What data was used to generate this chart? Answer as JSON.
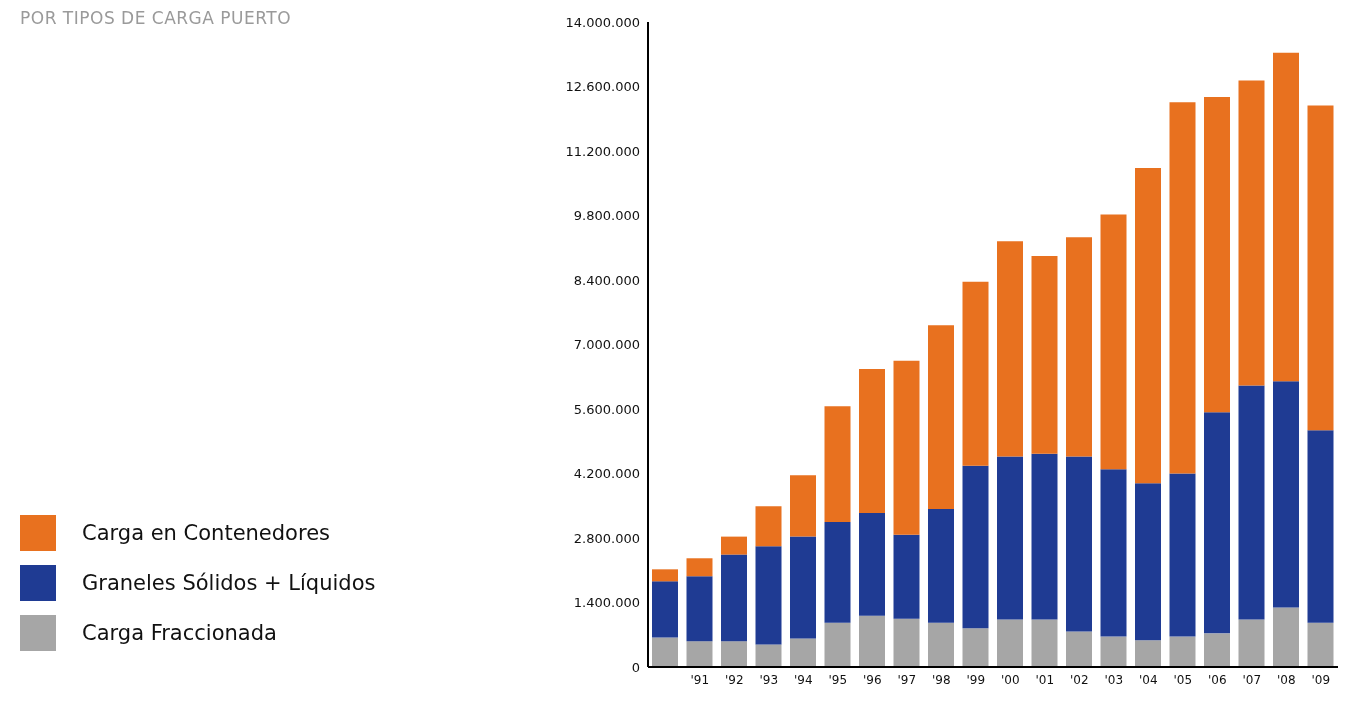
{
  "chart_data": {
    "type": "bar",
    "title": "POR TIPOS DE CARGA PUERTO",
    "stacked": true,
    "legend": "bottom left",
    "grid": false,
    "categories": [
      null,
      "'91",
      "'92",
      "'93",
      "'94",
      "'95",
      "'96",
      "'97",
      "'98",
      "'99",
      "'00",
      "'01",
      "'02",
      "'03",
      "'04",
      "'05",
      "'06",
      "'07",
      "'08",
      "'09"
    ],
    "series": [
      {
        "name": "Carga Fraccionada",
        "color": "#a6a6a6",
        "values": [
          640000,
          560000,
          560000,
          490000,
          620000,
          960000,
          1110000,
          1050000,
          960000,
          840000,
          1030000,
          1030000,
          770000,
          660000,
          580000,
          660000,
          730000,
          1030000,
          1290000,
          960000
        ]
      },
      {
        "name": "Graneles Sólidos + Líquidos",
        "color": "#1f3b93",
        "values": [
          1220000,
          1410000,
          1880000,
          2130000,
          2210000,
          2190000,
          2230000,
          1820000,
          2470000,
          3530000,
          3540000,
          3600000,
          3800000,
          3630000,
          3410000,
          3540000,
          4800000,
          5080000,
          4910000,
          4180000
        ]
      },
      {
        "name": "Carga en Contenedores",
        "color": "#e8711f",
        "values": [
          260000,
          390000,
          390000,
          870000,
          1330000,
          2510000,
          3130000,
          3780000,
          3990000,
          3990000,
          4670000,
          4290000,
          4760000,
          5530000,
          6840000,
          8060000,
          6840000,
          6620000,
          7130000,
          7050000
        ]
      }
    ],
    "ylim": [
      0,
      14000000
    ],
    "yticks": [
      0,
      {
        "value": 1400000,
        "label": "1.400.000"
      },
      {
        "value": 2800000,
        "label": "2.800.000"
      },
      {
        "value": 4200000,
        "label": "4.200.000"
      },
      {
        "value": 5600000,
        "label": "5.600.000"
      },
      {
        "value": 7000000,
        "label": "7.000.000"
      },
      {
        "value": 8400000,
        "label": "8.400.000"
      },
      {
        "value": 9800000,
        "label": "9.800.000"
      },
      {
        "value": 11200000,
        "label": "11.200.000"
      },
      {
        "value": 12600000,
        "label": "12.600.000"
      },
      {
        "value": 14000000,
        "label": "14.000.000"
      }
    ]
  }
}
